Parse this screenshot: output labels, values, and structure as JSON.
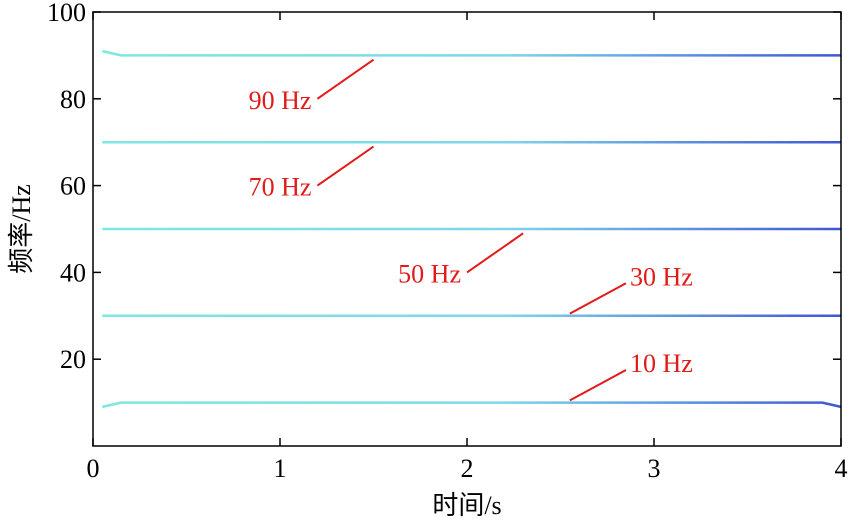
{
  "chart_data": {
    "type": "line",
    "title": "",
    "xlabel": "时间/s",
    "ylabel": "频率/Hz",
    "xlim": [
      0,
      4
    ],
    "ylim": [
      0,
      100
    ],
    "xticks": [
      "0",
      "1",
      "2",
      "3",
      "4"
    ],
    "yticks": [
      "20",
      "40",
      "60",
      "80",
      "100"
    ],
    "grid": false,
    "legend": "none",
    "series": [
      {
        "x": [
          0.05,
          0.15,
          1,
          2,
          3,
          3.9,
          4.0
        ],
        "values": [
          9,
          10,
          10,
          10,
          10,
          10,
          9
        ]
      },
      {
        "x": [
          0.05,
          0.15,
          1,
          2,
          3,
          3.9,
          4.0
        ],
        "values": [
          30,
          30,
          30,
          30,
          30,
          30,
          30
        ]
      },
      {
        "x": [
          0.05,
          0.15,
          1,
          2,
          3,
          3.9,
          4.0
        ],
        "values": [
          50,
          50,
          50,
          50,
          50,
          50,
          50
        ]
      },
      {
        "x": [
          0.05,
          0.15,
          1,
          2,
          3,
          3.9,
          4.0
        ],
        "values": [
          70,
          70,
          70,
          70,
          70,
          70,
          70
        ]
      },
      {
        "x": [
          0.05,
          0.15,
          1,
          2,
          3,
          3.9,
          4.0
        ],
        "values": [
          91,
          90,
          90,
          90,
          90,
          90,
          90
        ]
      }
    ],
    "annotations": [
      {
        "text": "90 Hz",
        "anchor": [
          1.5,
          89
        ],
        "tail": [
          1.2,
          80
        ]
      },
      {
        "text": "70 Hz",
        "anchor": [
          1.5,
          69
        ],
        "tail": [
          1.2,
          60
        ]
      },
      {
        "text": "50 Hz",
        "anchor": [
          2.3,
          49
        ],
        "tail": [
          2.0,
          40
        ]
      },
      {
        "text": "30 Hz",
        "anchor": [
          2.55,
          30.5
        ],
        "tail": [
          2.85,
          37.5
        ]
      },
      {
        "text": "10 Hz",
        "anchor": [
          2.55,
          10.5
        ],
        "tail": [
          2.85,
          17.5
        ]
      }
    ],
    "colors": {
      "line_start": "#7ee8e0",
      "line_end": "#3f57d4",
      "annotation": "#e11a1a",
      "axis": "#000000"
    }
  }
}
